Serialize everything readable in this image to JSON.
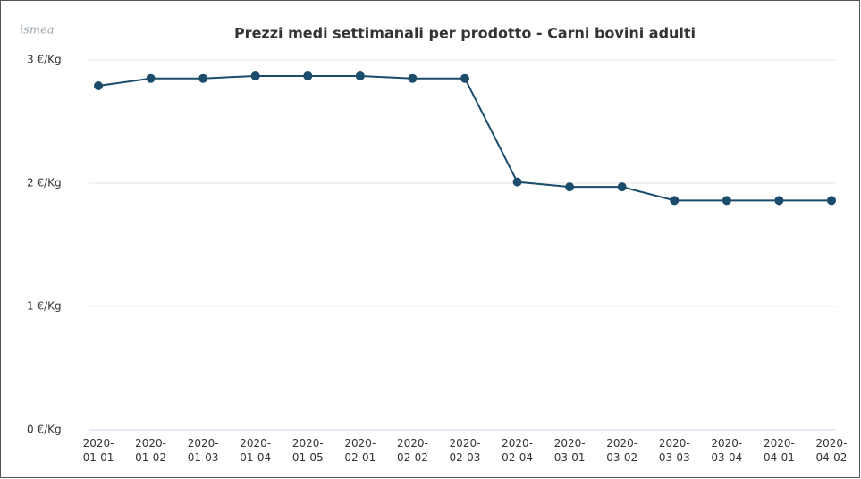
{
  "logo": "ismea",
  "chart_data": {
    "type": "line",
    "title": "Prezzi medi settimanali per prodotto - Carni bovini adulti",
    "categories": [
      "2020-01-01",
      "2020-01-02",
      "2020-01-03",
      "2020-01-04",
      "2020-01-05",
      "2020-02-01",
      "2020-02-02",
      "2020-02-03",
      "2020-02-04",
      "2020-03-01",
      "2020-03-02",
      "2020-03-03",
      "2020-03-04",
      "2020-04-01",
      "2020-04-02"
    ],
    "series": [
      {
        "name": "Carni bovini adulti",
        "color": "#1b4c6b",
        "values": [
          2.79,
          2.85,
          2.85,
          2.87,
          2.87,
          2.87,
          2.85,
          2.85,
          2.01,
          1.97,
          1.97,
          1.86,
          1.86,
          1.86,
          1.86
        ]
      }
    ],
    "ylim": [
      0,
      3
    ],
    "yticks": [
      {
        "value": 0,
        "label": "0 €/Kg"
      },
      {
        "value": 1,
        "label": "1 €/Kg"
      },
      {
        "value": 2,
        "label": "2 €/Kg"
      },
      {
        "value": 3,
        "label": "3 €/Kg"
      }
    ],
    "grid": true
  }
}
